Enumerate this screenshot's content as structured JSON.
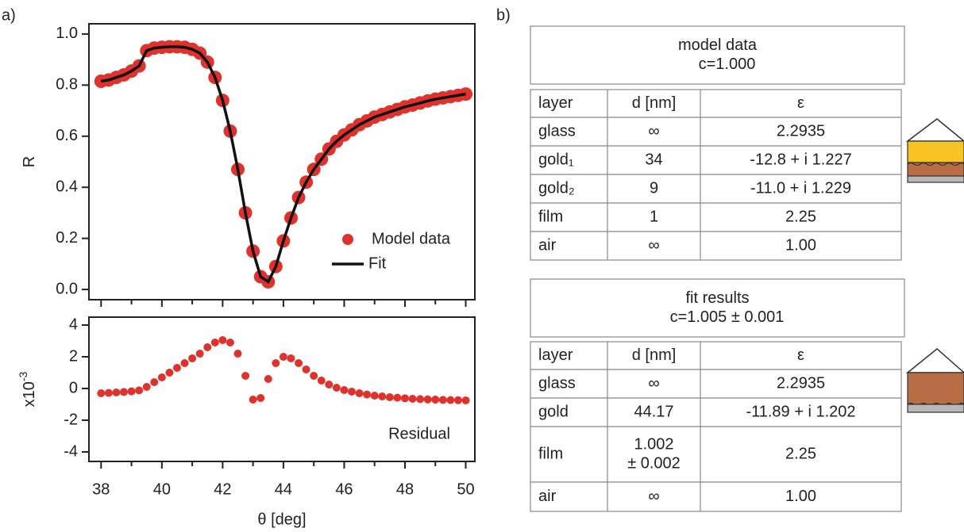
{
  "panel_labels": [
    "a)",
    "b)"
  ],
  "chart_data": [
    {
      "type": "scatter",
      "ylabel": "R",
      "x": [
        38,
        38.25,
        38.5,
        38.75,
        39,
        39.25,
        39.5,
        39.75,
        40,
        40.25,
        40.5,
        40.75,
        41,
        41.25,
        41.5,
        41.75,
        42,
        42.25,
        42.5,
        42.75,
        43,
        43.25,
        43.5,
        43.75,
        44,
        44.25,
        44.5,
        44.75,
        45,
        45.25,
        45.5,
        45.75,
        46,
        46.25,
        46.5,
        46.75,
        47,
        47.25,
        47.5,
        47.75,
        48,
        48.25,
        48.5,
        48.75,
        49,
        49.25,
        49.5,
        49.75,
        50
      ],
      "series": [
        {
          "name": "Model data",
          "style": "markers",
          "color": "#e0322d",
          "values": [
            0.815,
            0.82,
            0.83,
            0.84,
            0.855,
            0.875,
            0.935,
            0.945,
            0.948,
            0.95,
            0.95,
            0.948,
            0.94,
            0.925,
            0.89,
            0.83,
            0.74,
            0.62,
            0.47,
            0.3,
            0.15,
            0.05,
            0.03,
            0.09,
            0.19,
            0.28,
            0.36,
            0.42,
            0.47,
            0.51,
            0.55,
            0.58,
            0.605,
            0.625,
            0.645,
            0.66,
            0.675,
            0.685,
            0.695,
            0.705,
            0.715,
            0.722,
            0.73,
            0.738,
            0.745,
            0.75,
            0.755,
            0.76,
            0.765
          ]
        },
        {
          "name": "Fit",
          "style": "line",
          "color": "#111111",
          "values": [
            0.815,
            0.82,
            0.83,
            0.84,
            0.855,
            0.875,
            0.935,
            0.945,
            0.948,
            0.95,
            0.95,
            0.948,
            0.94,
            0.925,
            0.89,
            0.83,
            0.74,
            0.62,
            0.47,
            0.3,
            0.15,
            0.05,
            0.03,
            0.09,
            0.19,
            0.28,
            0.36,
            0.42,
            0.47,
            0.51,
            0.55,
            0.58,
            0.605,
            0.625,
            0.645,
            0.66,
            0.675,
            0.685,
            0.695,
            0.705,
            0.715,
            0.722,
            0.73,
            0.738,
            0.745,
            0.75,
            0.755,
            0.76,
            0.765
          ]
        }
      ],
      "xlim": [
        37.6,
        50.3
      ],
      "xticks": [
        38,
        40,
        42,
        44,
        46,
        48,
        50
      ],
      "xminorticks": [
        39,
        41,
        43,
        45,
        47,
        49
      ],
      "ylim": [
        -0.04,
        1.04
      ],
      "yticks": [
        {
          "value": 0,
          "label": "0.0"
        },
        0.2,
        0.4,
        0.6,
        0.8,
        {
          "value": 1,
          "label": "1.0"
        }
      ],
      "legend": "lower right"
    },
    {
      "type": "scatter",
      "xlabel": "θ [deg]",
      "ylabel": "x10",
      "ylabel_exponent": "-3",
      "annotation": "Residual",
      "x": [
        38,
        38.25,
        38.5,
        38.75,
        39,
        39.25,
        39.5,
        39.75,
        40,
        40.25,
        40.5,
        40.75,
        41,
        41.25,
        41.5,
        41.75,
        42,
        42.25,
        42.5,
        42.75,
        43,
        43.25,
        43.5,
        43.75,
        44,
        44.25,
        44.5,
        44.75,
        45,
        45.25,
        45.5,
        45.75,
        46,
        46.25,
        46.5,
        46.75,
        47,
        47.25,
        47.5,
        47.75,
        48,
        48.25,
        48.5,
        48.75,
        49,
        49.25,
        49.5,
        49.75,
        50
      ],
      "series": [
        {
          "style": "markers",
          "color": "#e0322d",
          "values": [
            -0.3,
            -0.28,
            -0.25,
            -0.22,
            -0.18,
            -0.12,
            0.1,
            0.4,
            0.7,
            1.0,
            1.3,
            1.6,
            1.9,
            2.2,
            2.6,
            2.9,
            3.05,
            2.9,
            2.2,
            0.8,
            -0.7,
            -0.6,
            0.6,
            1.6,
            2.0,
            1.9,
            1.6,
            1.2,
            0.8,
            0.5,
            0.25,
            0.05,
            -0.1,
            -0.2,
            -0.3,
            -0.38,
            -0.45,
            -0.5,
            -0.55,
            -0.58,
            -0.62,
            -0.65,
            -0.67,
            -0.69,
            -0.7,
            -0.72,
            -0.73,
            -0.74,
            -0.75
          ]
        }
      ],
      "xlim": [
        37.6,
        50.3
      ],
      "xticks": [
        38,
        40,
        42,
        44,
        46,
        48,
        50
      ],
      "xminorticks": [
        39,
        41,
        43,
        45,
        47,
        49
      ],
      "ylim": [
        -4.6,
        4.5
      ],
      "yticks": [
        -4,
        -2,
        0,
        2,
        4
      ]
    }
  ],
  "tables": [
    {
      "title_lines": [
        "model data",
        "c=1.000"
      ],
      "header": [
        "layer",
        "d [nm]",
        "ε"
      ],
      "rows": [
        [
          "glass",
          "∞",
          "2.2935"
        ],
        [
          "gold₁",
          "34",
          "-12.8 + i 1.227"
        ],
        [
          "gold₂",
          "9",
          "-11.0 + i 1.229"
        ],
        [
          "film",
          "1",
          "2.25"
        ],
        [
          "air",
          "∞",
          "1.00"
        ]
      ]
    },
    {
      "title_lines": [
        "fit results",
        "c=1.005 ± 0.001"
      ],
      "header": [
        "layer",
        "d [nm]",
        "ε"
      ],
      "rows": [
        [
          "glass",
          "∞",
          "2.2935"
        ],
        [
          "gold",
          "44.17",
          "-11.89 + i 1.202"
        ],
        [
          "film",
          [
            "1.002",
            "± 0.002"
          ],
          "2.25"
        ],
        [
          "air",
          "∞",
          "1.00"
        ]
      ]
    }
  ]
}
